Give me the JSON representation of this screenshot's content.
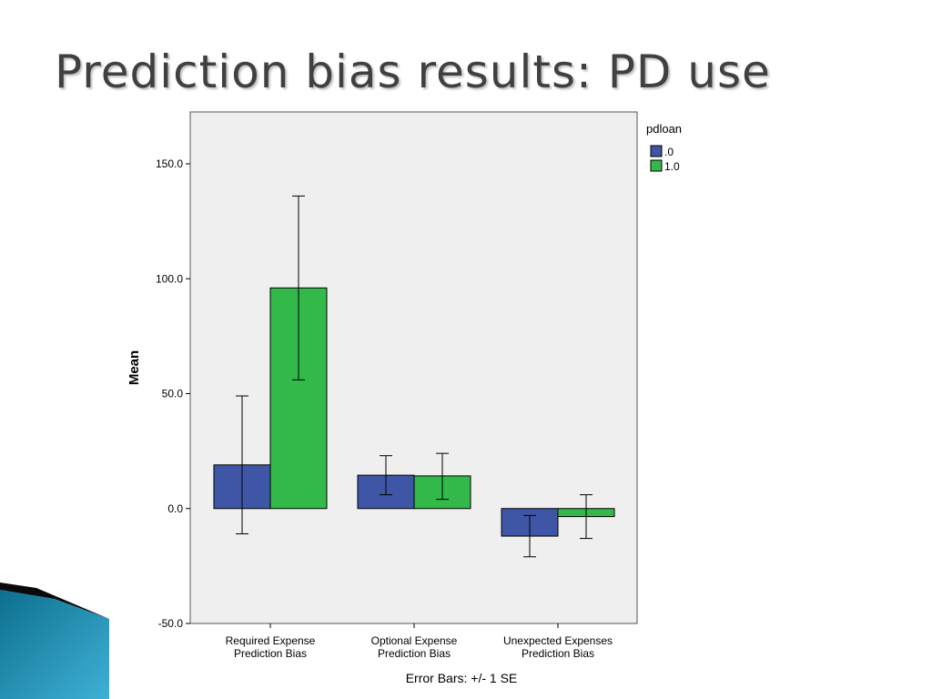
{
  "slide": {
    "title": "Prediction bias results: PD use"
  },
  "colors": {
    "series0": "#3f56a6",
    "series1": "#32b94a",
    "plot_bg": "#efefef"
  },
  "chart_data": {
    "type": "bar",
    "title": "",
    "xlabel": "",
    "ylabel": "Mean",
    "ylim": [
      -50,
      150
    ],
    "yticks": [
      -50,
      0,
      50,
      100,
      150
    ],
    "ytick_labels": [
      "-50.0",
      "0.0",
      "50.0",
      "100.0",
      "150.0"
    ],
    "categories": [
      [
        "Required Expense",
        "Prediction Bias"
      ],
      [
        "Optional Expense",
        "Prediction Bias"
      ],
      [
        "Unexpected Expenses",
        "Prediction Bias"
      ]
    ],
    "legend_title": "pdloan",
    "legend_position": "top-right",
    "grid": false,
    "series": [
      {
        "name": ".0",
        "values": [
          19,
          14.5,
          -12
        ],
        "se_low": [
          -11,
          6,
          -21
        ],
        "se_high": [
          49,
          23,
          -3
        ]
      },
      {
        "name": "1.0",
        "values": [
          96,
          14.2,
          -3.5
        ],
        "se_low": [
          56,
          4,
          -13
        ],
        "se_high": [
          136,
          24,
          6
        ]
      }
    ],
    "footnote": "Error Bars: +/- 1 SE"
  }
}
